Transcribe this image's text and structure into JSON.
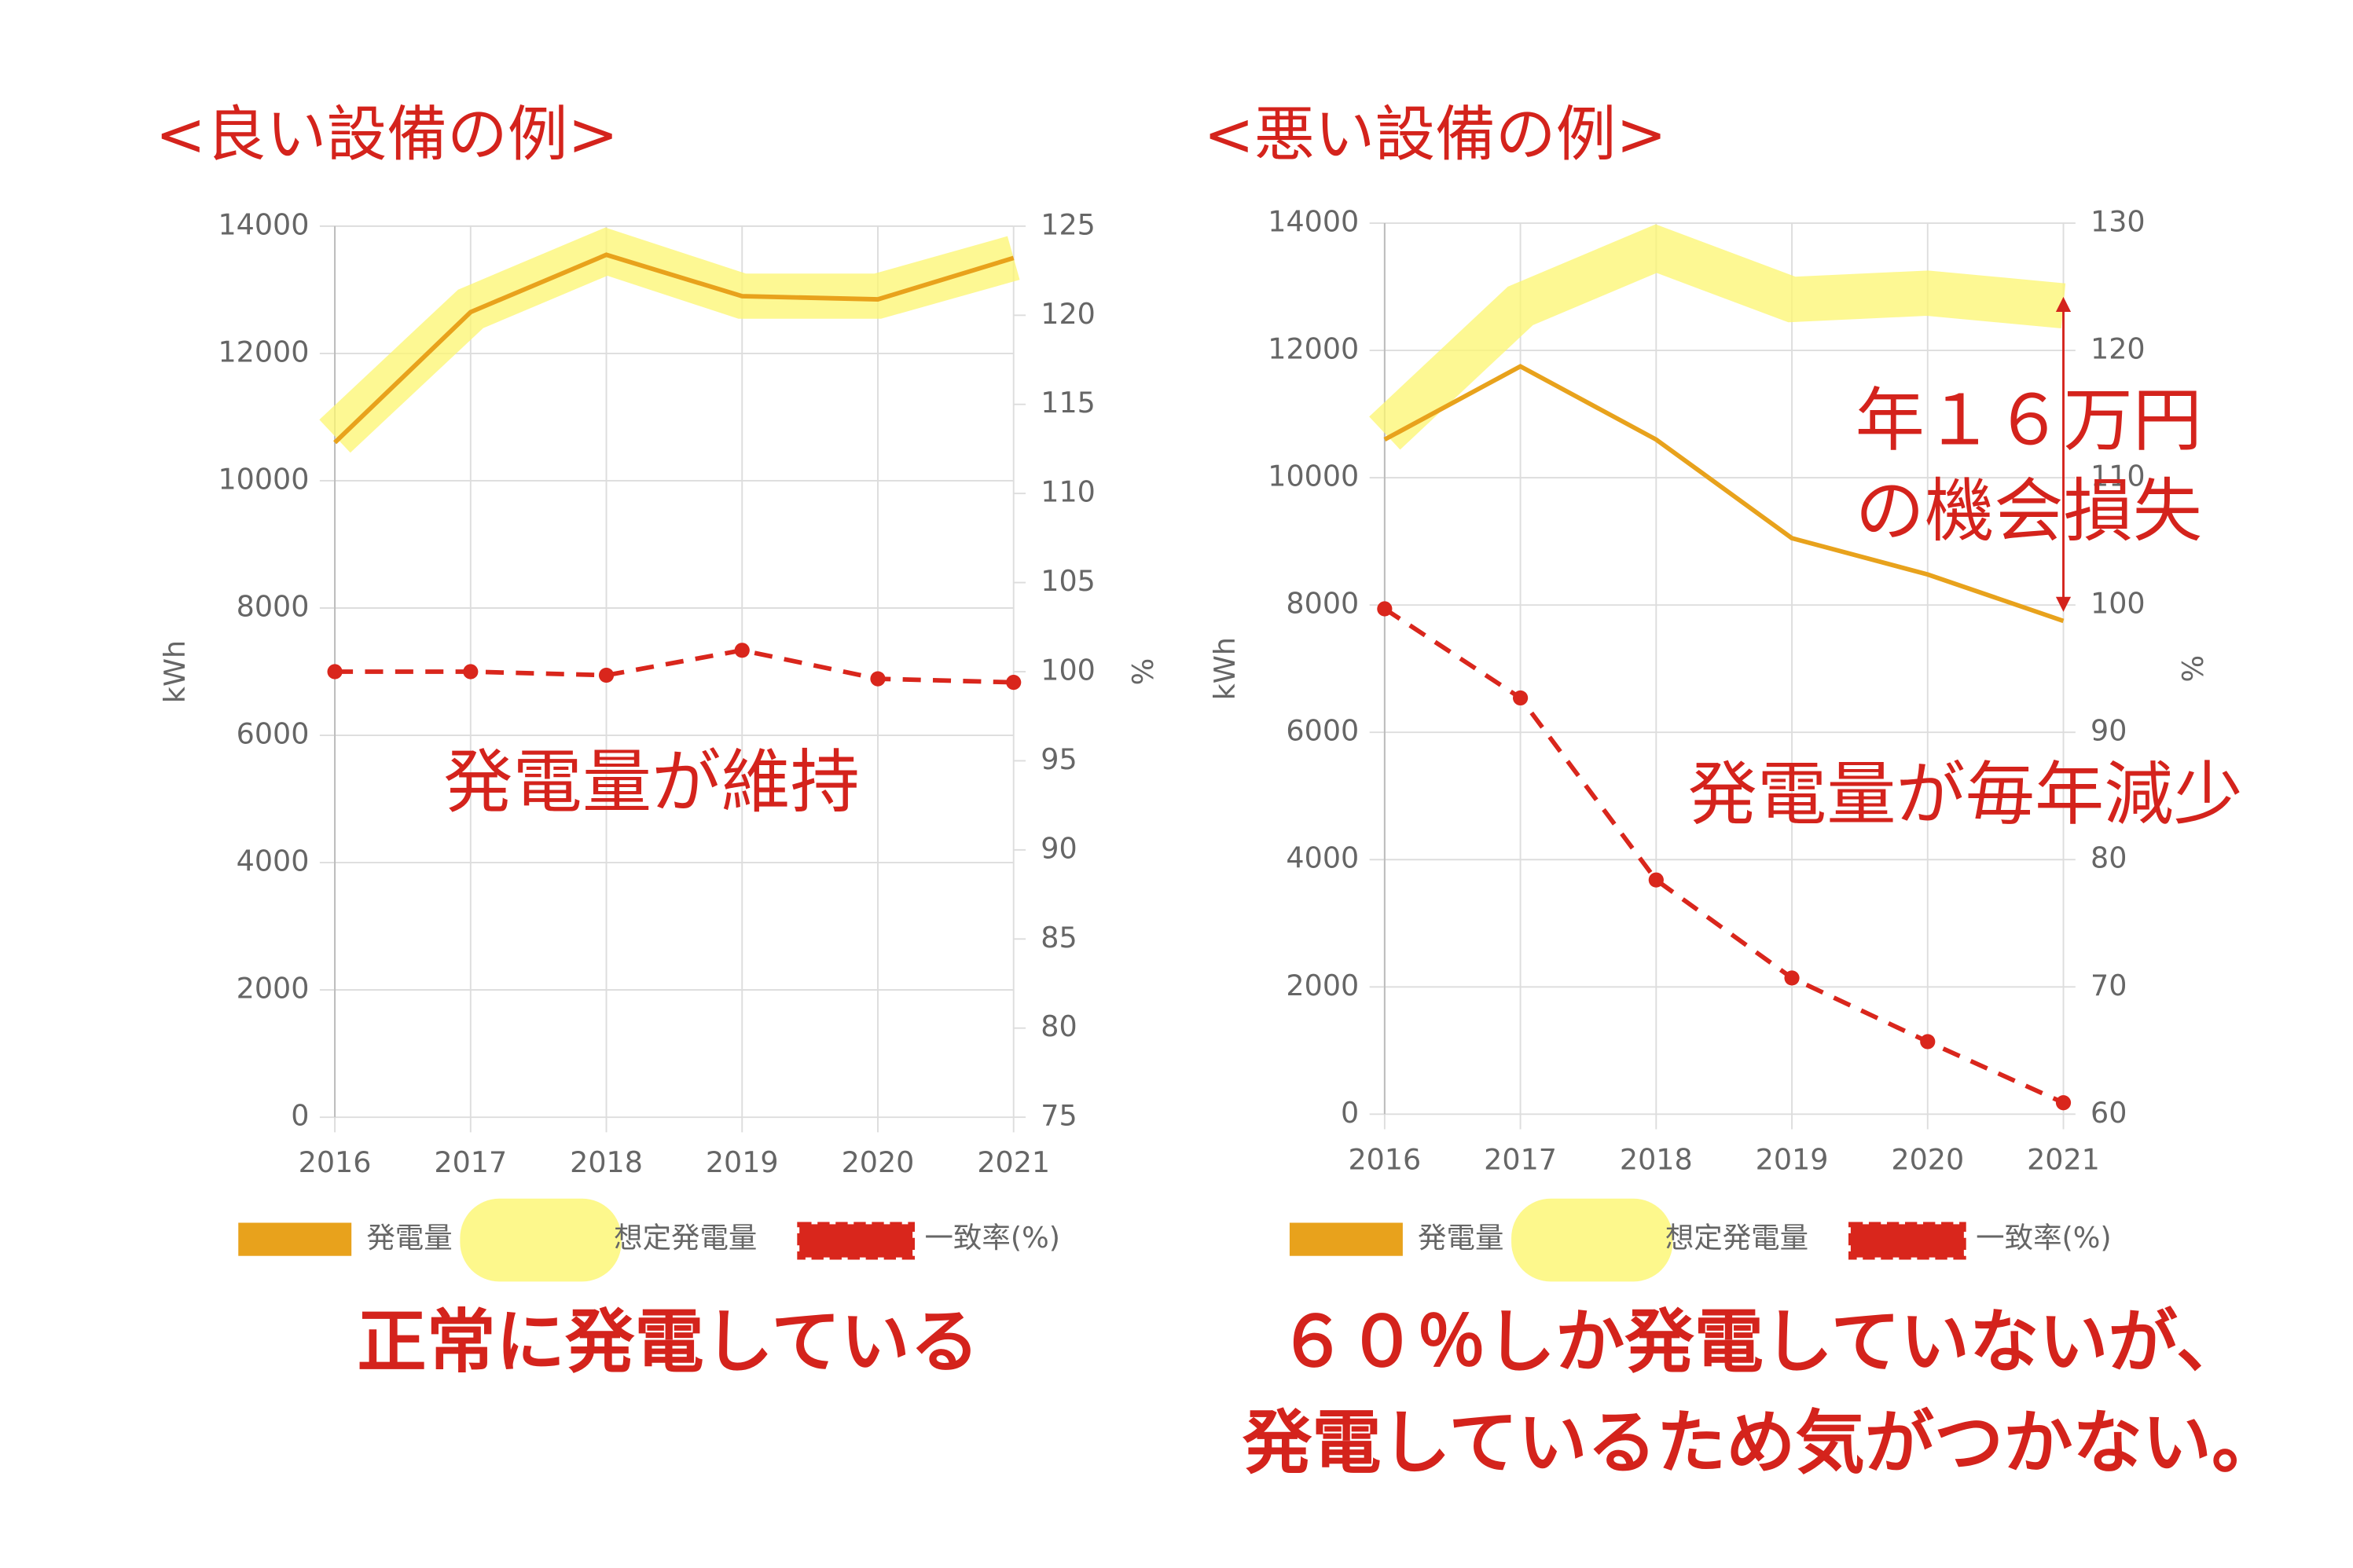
{
  "chart_data": [
    {
      "type": "line",
      "title": "<良い設備の例>",
      "ylabel": "kWh",
      "y2label": "%",
      "categories": [
        "2016",
        "2017",
        "2018",
        "2019",
        "2020",
        "2021"
      ],
      "series": [
        {
          "name": "発電量",
          "color": "#e8a21c",
          "style": "line",
          "values": [
            10600,
            12650,
            13550,
            12900,
            12850,
            13500
          ]
        },
        {
          "name": "想定発電量",
          "color": "#fcf66f",
          "style": "highlight",
          "values": [
            10700,
            12700,
            13600,
            12900,
            12900,
            13500
          ]
        },
        {
          "name": "一致率(%)",
          "color": "#d9261c",
          "style": "dashed",
          "axis": "y2",
          "values": [
            100,
            100,
            99.8,
            101.2,
            99.6,
            99.4
          ]
        }
      ],
      "ylim": [
        0,
        14000
      ],
      "yticks": [
        0,
        2000,
        4000,
        6000,
        8000,
        10000,
        12000,
        14000
      ],
      "y2lim": [
        75,
        125
      ],
      "y2ticks": [
        75,
        80,
        85,
        90,
        95,
        100,
        105,
        110,
        115,
        120,
        125
      ],
      "grid": true,
      "annotations": [
        "発電量が維持"
      ],
      "caption": [
        "正常に発電している"
      ]
    },
    {
      "type": "line",
      "title": "<悪い設備の例>",
      "ylabel": "kWh",
      "y2label": "%",
      "categories": [
        "2016",
        "2017",
        "2018",
        "2019",
        "2020",
        "2021"
      ],
      "series": [
        {
          "name": "発電量",
          "color": "#e8a21c",
          "style": "line",
          "values": [
            10600,
            11750,
            10600,
            9050,
            8480,
            7750
          ]
        },
        {
          "name": "想定発電量",
          "color": "#fcf66f",
          "style": "highlight",
          "values": [
            10700,
            12700,
            13600,
            12800,
            12900,
            12700
          ]
        },
        {
          "name": "一致率(%)",
          "color": "#d9261c",
          "style": "dashed",
          "axis": "y2",
          "values": [
            99.7,
            92.7,
            78.4,
            70.7,
            65.7,
            60.9
          ]
        }
      ],
      "ylim": [
        0,
        14000
      ],
      "yticks": [
        0,
        2000,
        4000,
        6000,
        8000,
        10000,
        12000,
        14000
      ],
      "y2lim": [
        60,
        130
      ],
      "y2ticks": [
        60,
        70,
        80,
        90,
        100,
        110,
        120,
        130
      ],
      "grid": true,
      "annotations": [
        "年１６万円",
        "の機会損失",
        "発電量が毎年減少"
      ],
      "caption": [
        "６０％しか発電していないが、",
        "発電しているため気がつかない。"
      ]
    }
  ]
}
